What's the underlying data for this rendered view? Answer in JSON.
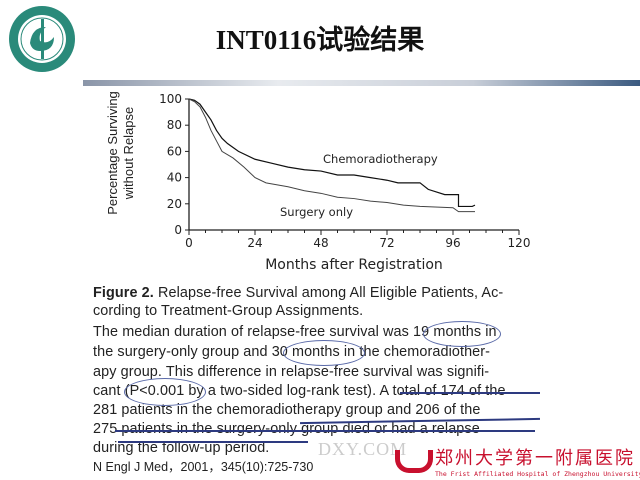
{
  "slide": {
    "title": "INT0116试验结果",
    "citation": "N Engl J Med，2001，345(10):725-730"
  },
  "logo": {
    "text": "郑州大学第一附属医院",
    "year": "1928"
  },
  "watermark": {
    "site": "DXY.COM",
    "hospital_cn": "郑州大学第一附属医院",
    "hospital_en": "The Frist Affiliated Hospital of Zhengzhou University"
  },
  "caption": {
    "fig_label": "Figure 2.",
    "fig_line1": " Relapse-free Survival among All Eligible Patients, Ac-",
    "fig_line2": "cording to Treatment-Group Assignments.",
    "body": [
      "The median duration of relapse-free survival was 19 months in",
      "the surgery-only group and 30 months in the chemoradiother-",
      "apy group. This difference in relapse-free survival was signifi-",
      "cant (P<0.001 by a two-sided log-rank test). A total of 174 of the",
      "281 patients in the chemoradiotherapy group and 206 of the",
      "275 patients in the surgery-only group died or had a relapse",
      "during the follow-up period."
    ]
  },
  "chart_data": {
    "type": "line",
    "xlabel": "Months after Registration",
    "ylabel": "Percentage Surviving without Relapse",
    "ylabel_lines": [
      "Percentage Surviving",
      "without Relapse"
    ],
    "xlim": [
      0,
      120
    ],
    "ylim": [
      0,
      100
    ],
    "xticks": [
      "0",
      "24",
      "48",
      "72",
      "96",
      "120"
    ],
    "yticks": [
      "0",
      "20",
      "40",
      "60",
      "80",
      "100"
    ],
    "grid": false,
    "series": [
      {
        "name": "Chemoradiotherapy",
        "color": "#111111",
        "x": [
          0,
          2,
          4,
          6,
          8,
          10,
          12,
          14,
          18,
          24,
          30,
          36,
          42,
          48,
          54,
          60,
          66,
          72,
          76,
          84,
          87,
          93,
          98,
          98,
          103,
          104
        ],
        "y": [
          100,
          99,
          96,
          90,
          84,
          76,
          70,
          66,
          60,
          54,
          51,
          48,
          46,
          45,
          42,
          42,
          40,
          38,
          36,
          36,
          31,
          27,
          27,
          18,
          18,
          19
        ]
      },
      {
        "name": "Surgery only",
        "color": "#444444",
        "x": [
          0,
          2,
          4,
          6,
          8,
          10,
          12,
          16,
          20,
          24,
          28,
          36,
          42,
          48,
          54,
          60,
          66,
          72,
          78,
          84,
          96,
          98,
          104
        ],
        "y": [
          100,
          98,
          94,
          86,
          76,
          68,
          60,
          55,
          48,
          40,
          36,
          33,
          30,
          28,
          25,
          24,
          22,
          21,
          19,
          18,
          17,
          14,
          14
        ]
      }
    ]
  }
}
